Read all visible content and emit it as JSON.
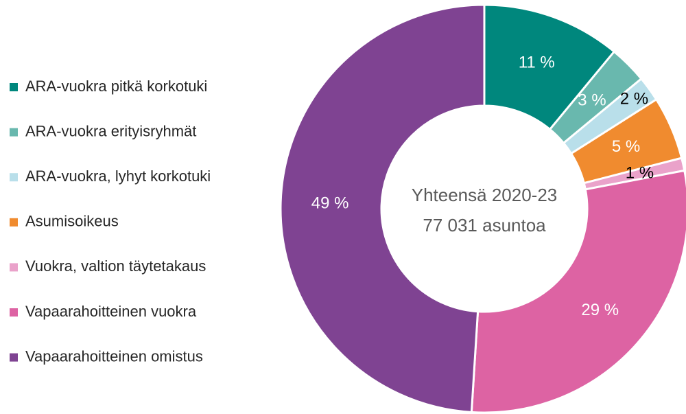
{
  "chart_data": {
    "type": "donut",
    "categories": [
      "ARA-vuokra pitkä korkotuki",
      "ARA-vuokra erityisryhmät",
      "ARA-vuokra, lyhyt korkotuki",
      "Asumisoikeus",
      "Vuokra, valtion täytetakaus",
      "Vapaarahoitteinen vuokra",
      "Vapaarahoitteinen omistus"
    ],
    "values": [
      11,
      3,
      2,
      5,
      1,
      29,
      49
    ],
    "value_labels": [
      "11 %",
      "3 %",
      "2 %",
      "5 %",
      "1 %",
      "29 %",
      "49 %"
    ],
    "colors": [
      "#00877d",
      "#69b8ae",
      "#b9dfea",
      "#f08b2f",
      "#eaa2ca",
      "#dd63a3",
      "#7f4392"
    ],
    "label_colors": [
      "#ffffff",
      "#ffffff",
      "#000000",
      "#ffffff",
      "#000000",
      "#ffffff",
      "#ffffff"
    ],
    "annotations": [
      "Yhteensä 2020-23",
      "77 031 asuntoa"
    ],
    "legend": "left"
  }
}
